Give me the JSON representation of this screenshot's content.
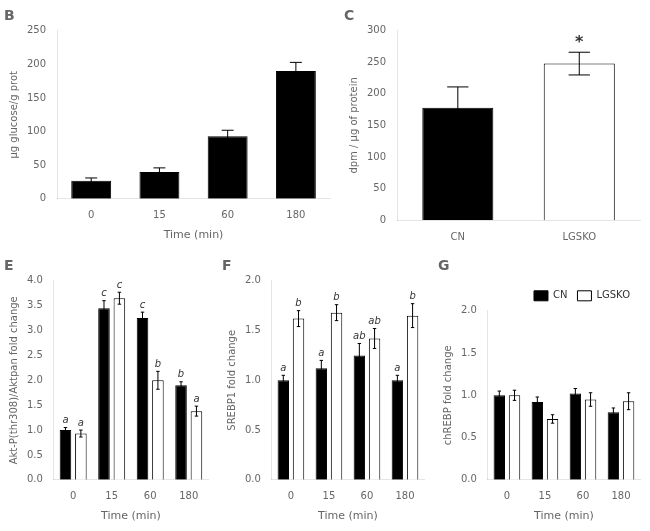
{
  "chart_data": [
    {
      "type": "bar",
      "title": "B",
      "categories": [
        "0",
        "15",
        "60",
        "180"
      ],
      "values": [
        27,
        40,
        93,
        190
      ],
      "errors": [
        4,
        6,
        9,
        13
      ],
      "color": "#000000",
      "xlabel": "Time (min)",
      "ylabel": "µg glucose/g prot",
      "ylim": [
        0,
        250
      ],
      "yticks": [
        0,
        50,
        100,
        150,
        200,
        250
      ],
      "grid": false
    },
    {
      "type": "bar",
      "title": "C",
      "categories": [
        "CN",
        "LGSKO"
      ],
      "values": [
        178,
        248
      ],
      "errors": [
        33,
        18
      ],
      "colors": [
        "#000000",
        "#ffffff"
      ],
      "ylabel": "dpm / µg of protein",
      "ylim": [
        0,
        300
      ],
      "yticks": [
        0,
        50,
        100,
        150,
        200,
        250,
        300
      ],
      "grid": false,
      "annotations": [
        {
          "text": "*",
          "category": "LGSKO"
        }
      ]
    },
    {
      "type": "bar",
      "title": "E",
      "categories": [
        "0",
        "15",
        "60",
        "180"
      ],
      "series": [
        {
          "name": "CN",
          "color": "#000000",
          "values": [
            1.0,
            3.45,
            3.25,
            1.9
          ],
          "errors": [
            0.05,
            0.15,
            0.12,
            0.07
          ],
          "labels": [
            "a",
            "c",
            "c",
            "b"
          ]
        },
        {
          "name": "LGSKO",
          "color": "#ffffff",
          "values": [
            0.93,
            3.65,
            2.0,
            1.38
          ],
          "errors": [
            0.07,
            0.12,
            0.18,
            0.1
          ],
          "labels": [
            "a",
            "c",
            "b",
            "a"
          ]
        }
      ],
      "xlabel": "Time (min)",
      "ylabel": "Akt-P(thr308)/Aktpan fold change",
      "ylim": [
        0,
        4.0
      ],
      "yticks": [
        {
          "value": 0,
          "label": "0.0"
        },
        0.5,
        {
          "value": 1,
          "label": "1.0"
        },
        1.5,
        {
          "value": 2,
          "label": "2.0"
        },
        2.5,
        {
          "value": 3,
          "label": "3.0"
        },
        3.5,
        {
          "value": 4,
          "label": "4.0"
        }
      ],
      "grid": false
    },
    {
      "type": "bar",
      "title": "F",
      "categories": [
        "0",
        "15",
        "60",
        "180"
      ],
      "series": [
        {
          "name": "CN",
          "color": "#000000",
          "values": [
            1.0,
            1.12,
            1.25,
            1.0
          ],
          "errors": [
            0.05,
            0.08,
            0.12,
            0.05
          ],
          "labels": [
            "a",
            "a",
            "ab",
            "a"
          ]
        },
        {
          "name": "LGSKO",
          "color": "#ffffff",
          "values": [
            1.62,
            1.68,
            1.42,
            1.65
          ],
          "errors": [
            0.08,
            0.08,
            0.1,
            0.12
          ],
          "labels": [
            "b",
            "b",
            "ab",
            "b"
          ]
        }
      ],
      "xlabel": "Time (min)",
      "ylabel": "SREBP1 fold change",
      "ylim": [
        0,
        2.0
      ],
      "yticks": [
        {
          "value": 0,
          "label": "0.0"
        },
        0.5,
        {
          "value": 1,
          "label": "1.0"
        },
        1.5,
        {
          "value": 2,
          "label": "2.0"
        }
      ],
      "grid": false
    },
    {
      "type": "bar",
      "title": "G",
      "categories": [
        "0",
        "15",
        "60",
        "180"
      ],
      "series": [
        {
          "name": "CN",
          "color": "#000000",
          "values": [
            1.0,
            0.92,
            1.02,
            0.8
          ],
          "errors": [
            0.05,
            0.06,
            0.06,
            0.05
          ]
        },
        {
          "name": "LGSKO",
          "color": "#ffffff",
          "values": [
            1.0,
            0.72,
            0.95,
            0.93
          ],
          "errors": [
            0.06,
            0.05,
            0.08,
            0.1
          ]
        }
      ],
      "xlabel": "Time (min)",
      "ylabel": "chREBP fold change",
      "ylim": [
        0,
        2.0
      ],
      "yticks": [
        {
          "value": 0,
          "label": "0.0"
        },
        0.5,
        {
          "value": 1,
          "label": "1.0"
        },
        1.5,
        {
          "value": 2,
          "label": "2.0"
        }
      ],
      "grid": false,
      "legend": "upper right"
    }
  ]
}
